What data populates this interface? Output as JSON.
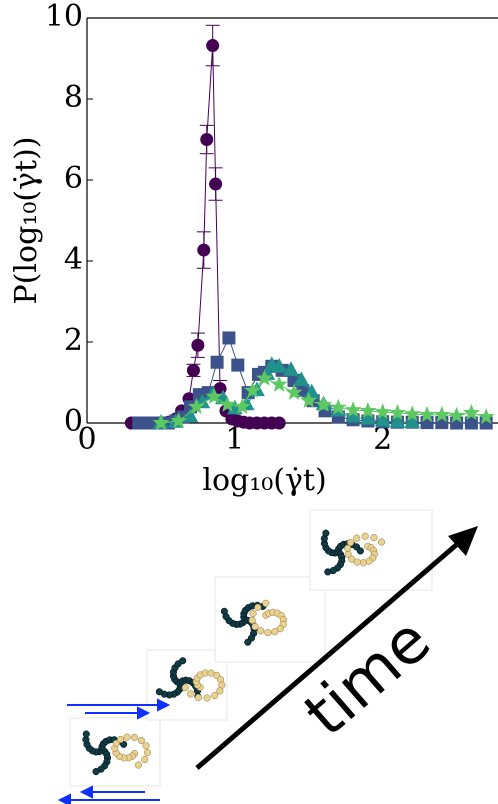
{
  "chart_data": {
    "type": "line",
    "xlabel": "log₁₀(γ̇t)",
    "ylabel": "P(log₁₀(γ̇t))",
    "xlim": [
      0,
      2.78
    ],
    "ylim": [
      0,
      10
    ],
    "xticks": [
      0,
      1,
      2
    ],
    "yticks": [
      0,
      2,
      4,
      6,
      8,
      10
    ],
    "series": [
      {
        "color": "#440154",
        "marker": "circle",
        "x": [
          0.3,
          0.34,
          0.38,
          0.42,
          0.46,
          0.5,
          0.55,
          0.6,
          0.64,
          0.69,
          0.72,
          0.75,
          0.79,
          0.81,
          0.85,
          0.87,
          0.9,
          0.94,
          0.98,
          1.02,
          1.06,
          1.1,
          1.15,
          1.2,
          1.25,
          1.3
        ],
        "values": [
          0,
          0,
          0,
          0,
          0,
          0,
          0.02,
          0.1,
          0.3,
          0.6,
          1.3,
          1.92,
          4.27,
          7.0,
          9.32,
          5.9,
          0.85,
          0.3,
          0.1,
          0.05,
          0.02,
          0,
          0,
          0,
          0,
          0
        ],
        "errors": [
          null,
          null,
          null,
          null,
          null,
          null,
          null,
          null,
          null,
          null,
          0.15,
          0.3,
          0.45,
          0.35,
          0.5,
          0.4,
          0.2,
          null,
          null,
          null,
          null,
          null,
          null,
          null,
          null,
          null
        ]
      },
      {
        "color": "#3b528b",
        "marker": "square",
        "x": [
          0.35,
          0.4,
          0.45,
          0.5,
          0.55,
          0.6,
          0.65,
          0.7,
          0.76,
          0.82,
          0.88,
          0.96,
          1.02,
          1.09,
          1.16,
          1.2,
          1.25,
          1.32,
          1.4,
          1.46,
          1.53,
          1.61,
          1.7,
          1.8,
          1.9,
          2.0,
          2.1,
          2.2,
          2.3,
          2.4,
          2.5,
          2.6,
          2.7
        ],
        "values": [
          0,
          0,
          0,
          0,
          0,
          0.05,
          0.15,
          0.4,
          0.7,
          0.75,
          1.5,
          2.1,
          1.43,
          0.75,
          1.2,
          1.25,
          1.4,
          1.3,
          1.05,
          0.8,
          0.55,
          0.3,
          0.15,
          0.08,
          0.05,
          0.03,
          0.02,
          0.02,
          0.01,
          0.01,
          0,
          0,
          0
        ]
      },
      {
        "color": "#21918c",
        "marker": "triangle",
        "x": [
          0.5,
          0.6,
          0.7,
          0.78,
          0.85,
          0.92,
          1.0,
          1.08,
          1.15,
          1.22,
          1.25,
          1.3,
          1.38,
          1.45,
          1.52,
          1.6,
          1.7,
          1.8,
          1.9,
          2.0,
          2.1,
          2.2
        ],
        "values": [
          0,
          0.02,
          0.15,
          0.5,
          0.7,
          0.6,
          0.35,
          0.45,
          0.8,
          1.2,
          1.42,
          1.38,
          1.3,
          1.05,
          0.75,
          0.45,
          0.3,
          0.15,
          0.1,
          0.05,
          0.02,
          0.01
        ]
      },
      {
        "color": "#5ec962",
        "marker": "star",
        "x": [
          0.5,
          0.62,
          0.74,
          0.86,
          0.95,
          1.05,
          1.12,
          1.2,
          1.3,
          1.4,
          1.5,
          1.6,
          1.7,
          1.8,
          1.9,
          2.0,
          2.1,
          2.2,
          2.3,
          2.4,
          2.5,
          2.6,
          2.7
        ],
        "values": [
          0,
          0.05,
          0.4,
          0.65,
          0.45,
          0.4,
          0.8,
          1.1,
          0.95,
          0.75,
          0.55,
          0.45,
          0.38,
          0.32,
          0.3,
          0.27,
          0.25,
          0.22,
          0.2,
          0.2,
          0.18,
          0.25,
          0.15
        ]
      }
    ],
    "annotation": "time"
  }
}
